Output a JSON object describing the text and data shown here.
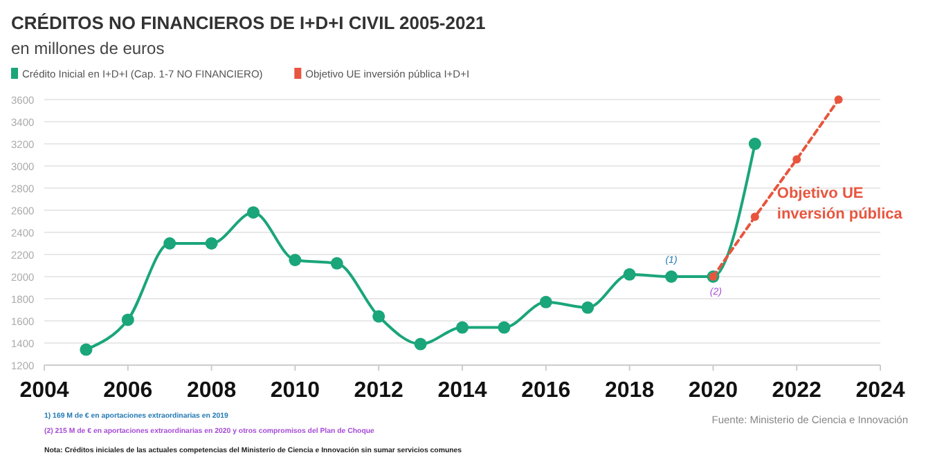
{
  "chart_data": {
    "type": "line",
    "title": "CRÉDITOS NO FINANCIEROS DE I+D+I CIVIL 2005-2021",
    "subtitle": "en millones de euros",
    "x": [
      2005,
      2006,
      2007,
      2008,
      2009,
      2010,
      2011,
      2012,
      2013,
      2014,
      2015,
      2016,
      2017,
      2018,
      2019,
      2020,
      2021
    ],
    "series": [
      {
        "name": "Crédito Inicial en I+D+I (Cap. 1-7 NO FINANCIERO)",
        "color": "#1aa57a",
        "values": [
          1340,
          1610,
          2300,
          2300,
          2580,
          2150,
          2120,
          1640,
          1390,
          1540,
          1540,
          1770,
          1720,
          2020,
          2000,
          2000,
          3200
        ],
        "line_style": "solid"
      },
      {
        "name": "Objetivo UE inversión pública I+D+I",
        "color": "#e8553e",
        "x": [
          2020,
          2021,
          2022,
          2023
        ],
        "values": [
          2000,
          2540,
          3060,
          3600
        ],
        "line_style": "dashed"
      }
    ],
    "xlim": [
      2004,
      2024
    ],
    "xticks": [
      2004,
      2006,
      2008,
      2010,
      2012,
      2014,
      2016,
      2018,
      2020,
      2022,
      2024
    ],
    "ylim": [
      1200,
      3600
    ],
    "yticks": [
      1200,
      1400,
      1600,
      1800,
      2000,
      2200,
      2400,
      2600,
      2800,
      3000,
      3200,
      3400,
      3600
    ],
    "grid": "y",
    "legend": "top left",
    "marker": "circle",
    "annotations": [
      {
        "text": "(1)",
        "x": 2019,
        "y": 2000
      },
      {
        "text": "(2)",
        "x": 2020,
        "y": 2000
      },
      {
        "text": "Objetivo UE inversión pública",
        "x": 2021,
        "y": 2540
      },
      "1) 169 M de € en aportaciones extraordinarias en 2019",
      "(2) 215 M de € en aportaciones extraordinarias en 2020 y otros compromisos del Plan de Choque",
      "Nota: Créditos iniciales de las actuales competencias del Ministerio de Ciencia e Innovación sin sumar servicios comunes",
      "Fuente: Ministerio de Ciencia e Innovación"
    ]
  }
}
